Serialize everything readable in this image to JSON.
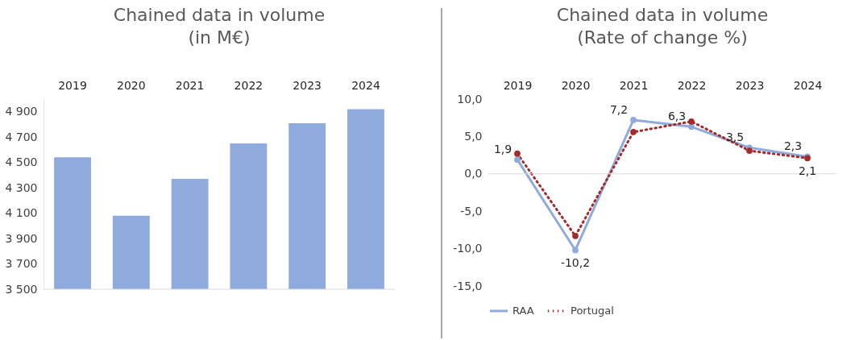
{
  "chart_data": [
    {
      "type": "bar",
      "title": "Chained data in volume",
      "subtitle": "(in M€)",
      "categories": [
        "2019",
        "2020",
        "2021",
        "2022",
        "2023",
        "2024"
      ],
      "values": [
        4540,
        4080,
        4370,
        4650,
        4810,
        4920
      ],
      "color": "#8faadc",
      "ylim": [
        3500,
        5000
      ],
      "yticks": [
        {
          "value": 3500,
          "label": "3 500"
        },
        {
          "value": 3700,
          "label": "3 700"
        },
        {
          "value": 3900,
          "label": "3 900"
        },
        {
          "value": 4100,
          "label": "4 100"
        },
        {
          "value": 4300,
          "label": "4 300"
        },
        {
          "value": 4500,
          "label": "4 500"
        },
        {
          "value": 4700,
          "label": "4 700"
        },
        {
          "value": 4900,
          "label": "4 900"
        }
      ],
      "grid": false
    },
    {
      "type": "line",
      "title": "Chained data in volume",
      "subtitle": "(Rate of change %)",
      "categories": [
        "2019",
        "2020",
        "2021",
        "2022",
        "2023",
        "2024"
      ],
      "series": [
        {
          "name": "RAA",
          "color": "#8faadc",
          "line_style": "solid",
          "values": [
            1.9,
            -10.2,
            7.2,
            6.3,
            3.5,
            2.3
          ],
          "value_labels": [
            "1,9",
            "-10,2",
            "7,2",
            "6,3",
            "3,5",
            "2,3"
          ]
        },
        {
          "name": "Portugal",
          "color": "#a52a2a",
          "line_style": "dotted",
          "values": [
            2.7,
            -8.3,
            5.6,
            7.0,
            3.1,
            2.1
          ],
          "value_labels": [
            null,
            null,
            null,
            null,
            null,
            "2,1"
          ]
        }
      ],
      "ylim": [
        -15,
        10
      ],
      "yticks": [
        {
          "value": -15,
          "label": "-15,0"
        },
        {
          "value": -10,
          "label": "-10,0"
        },
        {
          "value": -5,
          "label": "-5,0"
        },
        {
          "value": 0,
          "label": "0,0"
        },
        {
          "value": 5,
          "label": "5,0"
        },
        {
          "value": 10,
          "label": "10,0"
        }
      ],
      "grid": false,
      "marker": "circle",
      "legend": "bottom",
      "ref_lines": [
        {
          "axis": "y",
          "value": 0,
          "color": "#d9d9d9"
        }
      ]
    }
  ]
}
